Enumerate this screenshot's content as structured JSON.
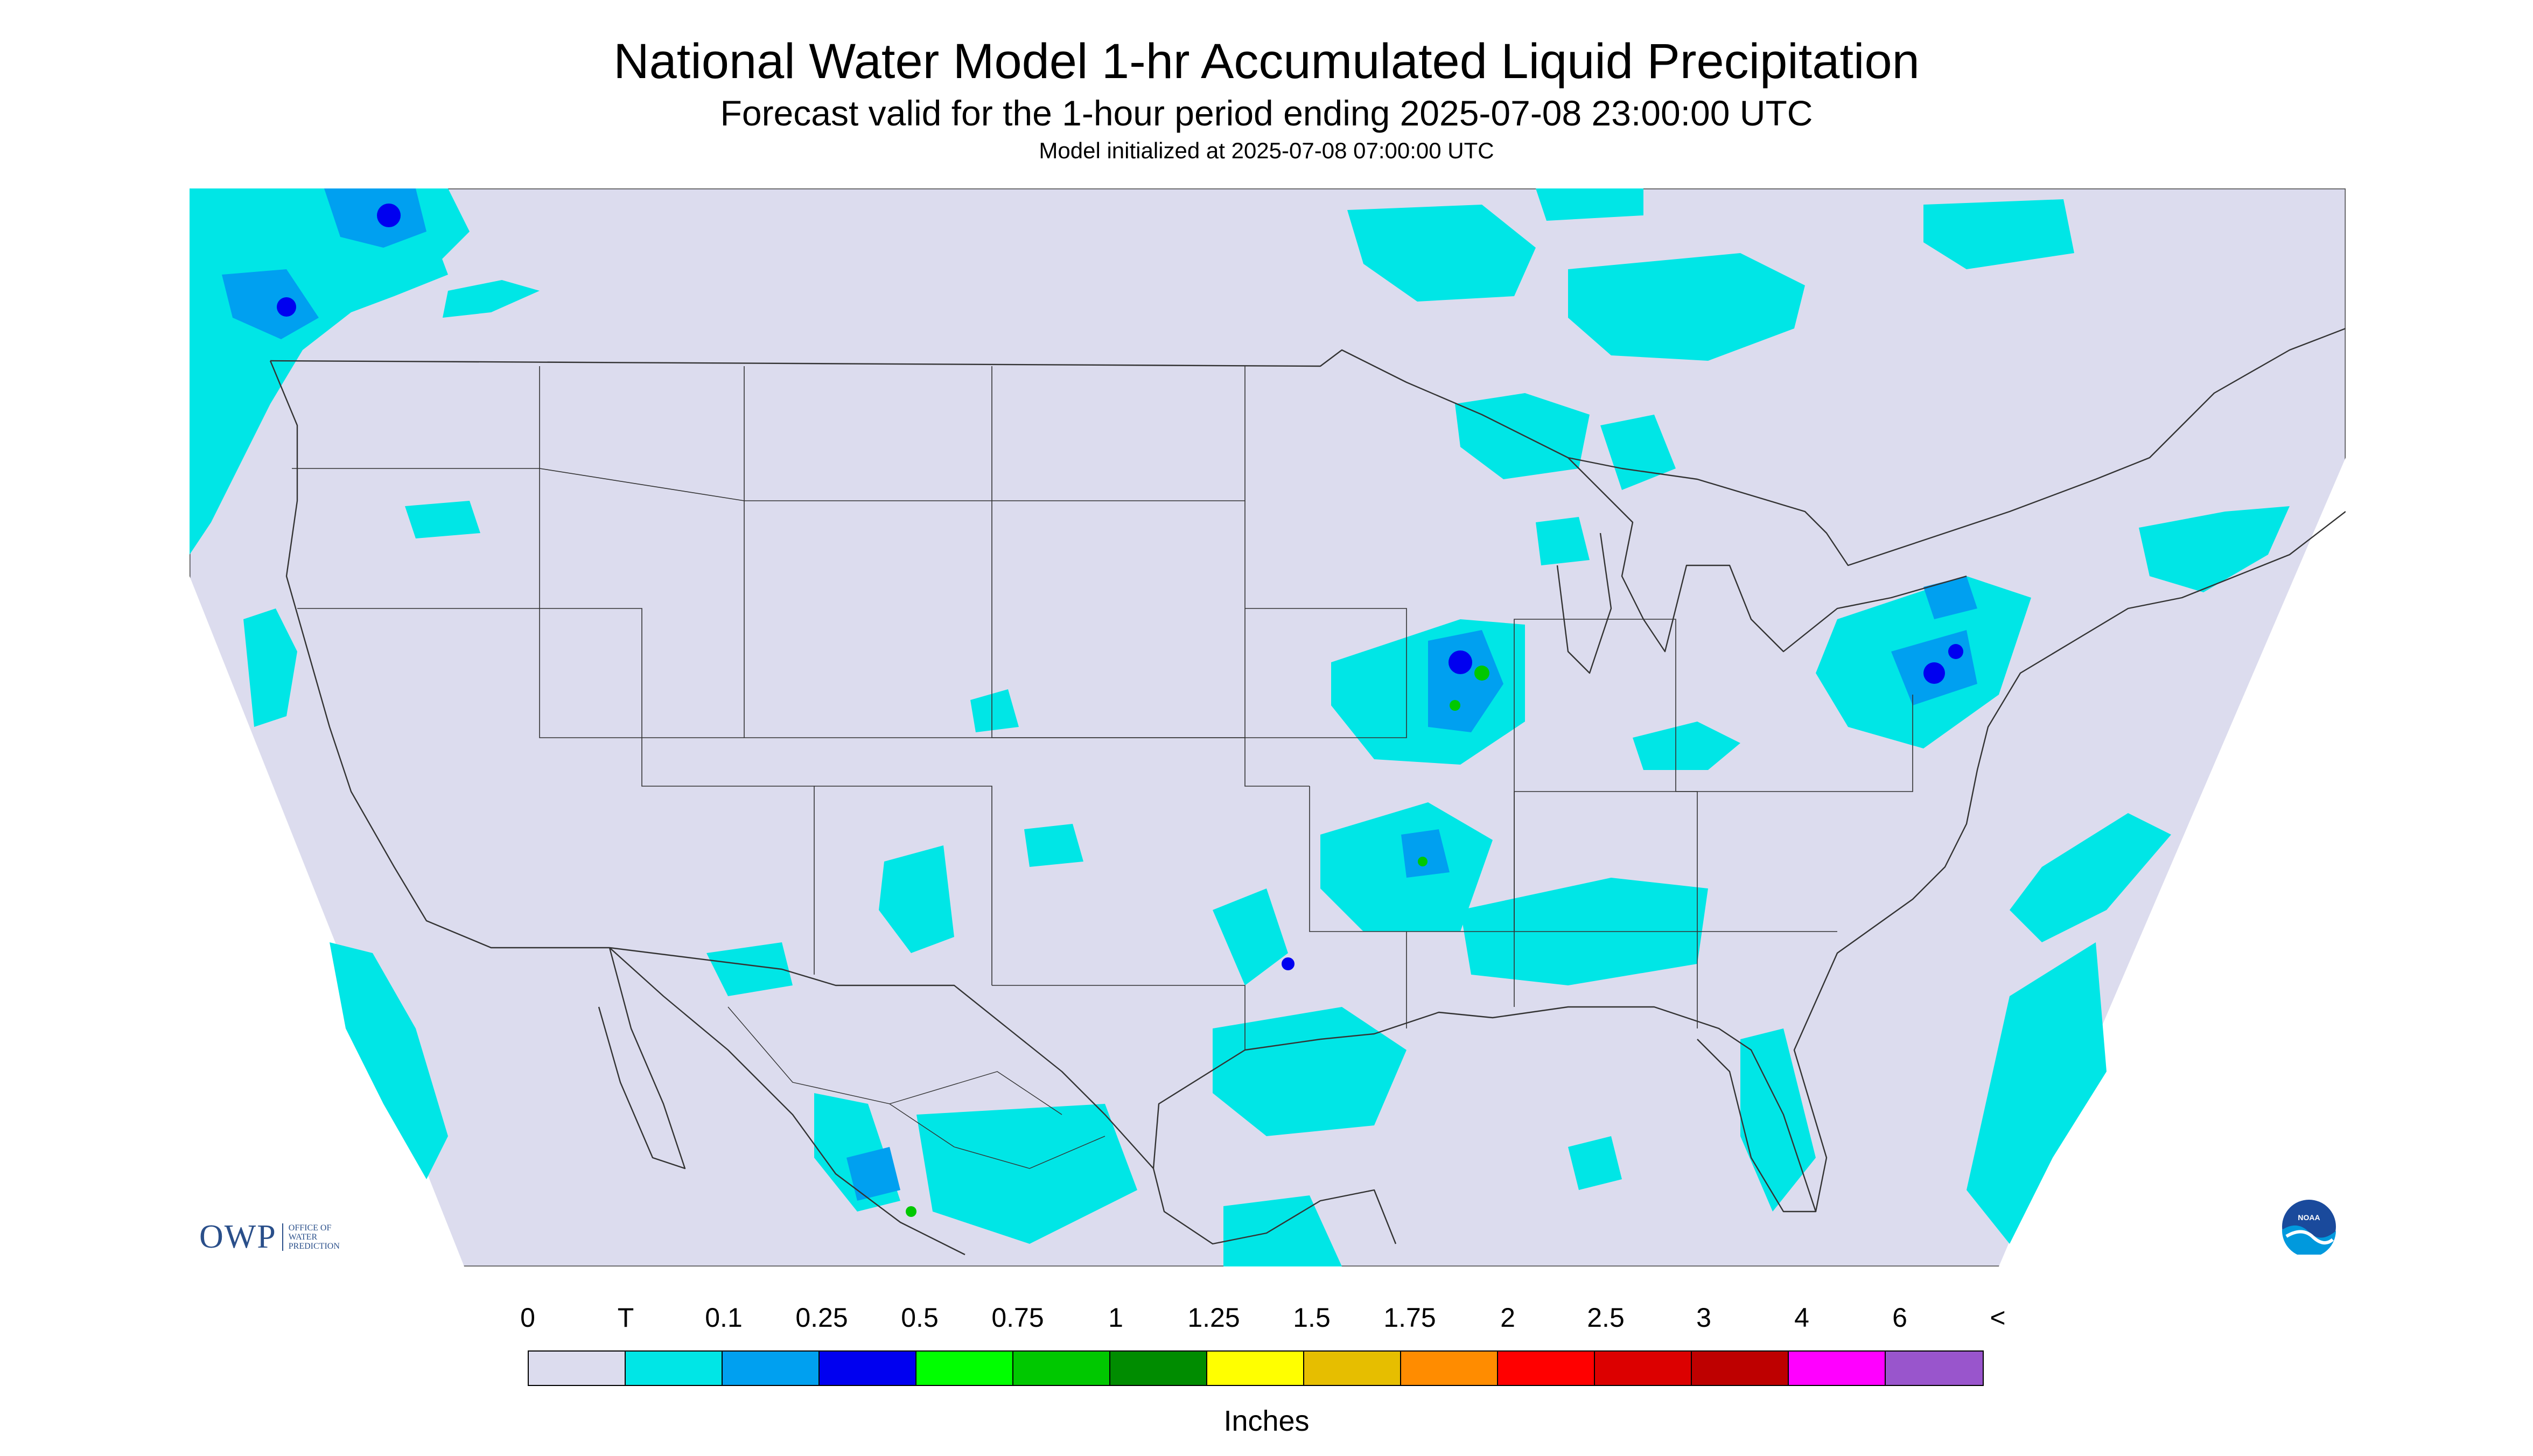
{
  "title": "National Water Model 1-hr Accumulated Liquid Precipitation",
  "subtitle": "Forecast valid for the 1-hour period ending 2025-07-08 23:00:00 UTC",
  "init": "Model initialized at 2025-07-08 07:00:00 UTC",
  "colors": {
    "background": "#dcdcee",
    "trace": "#00e6e6",
    "light": "#00a0f0",
    "moderate": "#0000f0",
    "border": "#333333"
  },
  "legend": {
    "labels": [
      "0",
      "T",
      "0.1",
      "0.25",
      "0.5",
      "0.75",
      "1",
      "1.25",
      "1.5",
      "1.75",
      "2",
      "2.5",
      "3",
      "4",
      "6",
      "<"
    ],
    "colors": [
      "#dcdcee",
      "#00e6e6",
      "#00a0f0",
      "#0000f0",
      "#00ff00",
      "#00c800",
      "#008c00",
      "#ffff00",
      "#e6be00",
      "#ff8c00",
      "#ff0000",
      "#dc0000",
      "#be0000",
      "#ff00ff",
      "#9955cc"
    ],
    "units": "Inches"
  },
  "logos": {
    "owp": {
      "text": "OWP",
      "sub": [
        "OFFICE OF",
        "WATER",
        "PREDICTION"
      ]
    },
    "noaa": {
      "text": "NOAA"
    }
  }
}
